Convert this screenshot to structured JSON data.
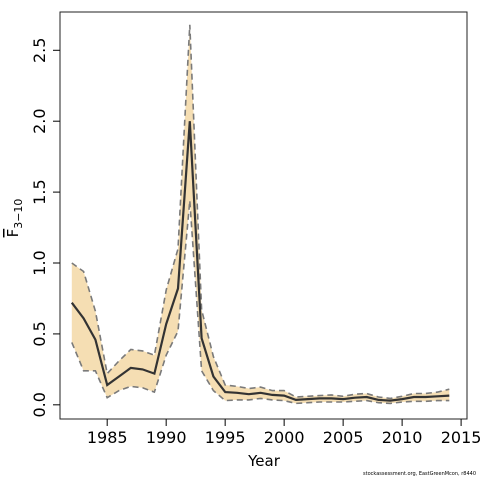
{
  "chart_data": {
    "type": "line",
    "xlabel": "Year",
    "ylabel_main": "F",
    "ylabel_sub": "3−10",
    "xlim": [
      1981,
      2015.5
    ],
    "ylim": [
      -0.1,
      2.77
    ],
    "x_ticks": [
      1985,
      1990,
      1995,
      2000,
      2005,
      2010,
      2015
    ],
    "y_ticks": [
      0.0,
      0.5,
      1.0,
      1.5,
      2.0,
      2.5
    ],
    "y_tick_labels": [
      "0.0",
      "0.5",
      "1.0",
      "1.5",
      "2.0",
      "2.5"
    ],
    "grid": false,
    "colors": {
      "band": "#f5deb3",
      "estimate": "#333333",
      "bounds": "#7a7a7a",
      "frame": "#222222"
    },
    "x": [
      1982,
      1983,
      1984,
      1985,
      1986,
      1987,
      1988,
      1989,
      1990,
      1991,
      1992,
      1993,
      1994,
      1995,
      1996,
      1997,
      1998,
      1999,
      2000,
      2001,
      2002,
      2003,
      2004,
      2005,
      2006,
      2007,
      2008,
      2009,
      2010,
      2011,
      2012,
      2013,
      2014
    ],
    "series": [
      {
        "role": "estimate",
        "values": [
          0.72,
          0.61,
          0.46,
          0.14,
          0.2,
          0.26,
          0.25,
          0.22,
          0.57,
          0.82,
          2.0,
          0.47,
          0.2,
          0.09,
          0.085,
          0.075,
          0.085,
          0.07,
          0.065,
          0.035,
          0.04,
          0.045,
          0.045,
          0.04,
          0.05,
          0.055,
          0.035,
          0.03,
          0.04,
          0.055,
          0.055,
          0.06,
          0.065
        ]
      },
      {
        "role": "upper",
        "values": [
          1.0,
          0.94,
          0.66,
          0.22,
          0.31,
          0.39,
          0.38,
          0.35,
          0.81,
          1.1,
          2.68,
          0.67,
          0.34,
          0.14,
          0.13,
          0.115,
          0.125,
          0.1,
          0.1,
          0.055,
          0.06,
          0.065,
          0.07,
          0.06,
          0.075,
          0.08,
          0.055,
          0.045,
          0.06,
          0.08,
          0.08,
          0.09,
          0.11
        ]
      },
      {
        "role": "lower",
        "values": [
          0.44,
          0.24,
          0.24,
          0.05,
          0.1,
          0.13,
          0.12,
          0.09,
          0.35,
          0.52,
          1.44,
          0.24,
          0.1,
          0.03,
          0.035,
          0.035,
          0.045,
          0.035,
          0.03,
          0.01,
          0.015,
          0.02,
          0.02,
          0.02,
          0.025,
          0.03,
          0.015,
          0.01,
          0.02,
          0.025,
          0.025,
          0.03,
          0.03
        ]
      }
    ]
  },
  "footer": {
    "credit": "stockassessment.org, EastGreenMcon, r8440"
  }
}
